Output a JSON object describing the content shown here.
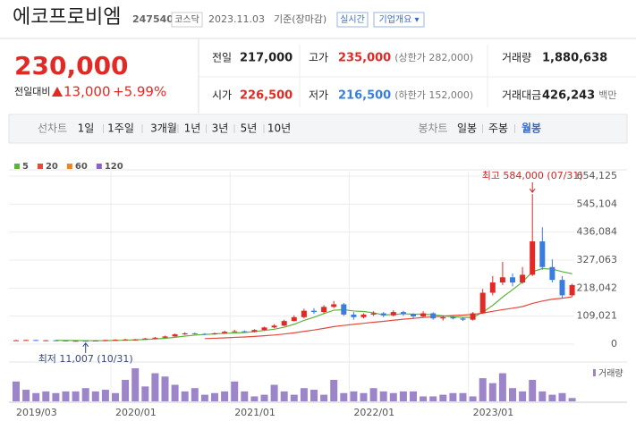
{
  "header": {
    "name": "에코프로비엠",
    "code": "247540",
    "market": "코스닥",
    "date": "2023.11.03",
    "basis": "기준(장마감)",
    "realtime": "실시간",
    "company_info": "기업개요 ▾"
  },
  "price": {
    "current": "230,000",
    "change_label": "전일대비",
    "change": "13,000",
    "change_pct": "+5.99%"
  },
  "quote": [
    {
      "label": "전일",
      "value": "217,000"
    },
    {
      "label": "고가",
      "value": "235,000",
      "note": "(상한가 282,000)"
    },
    {
      "label": "거래량",
      "value": "1,880,638"
    },
    {
      "label": "시가",
      "value": "226,500"
    },
    {
      "label": "저가",
      "value": "216,500",
      "note": "(하한가 152,000)"
    },
    {
      "label": "거래대금",
      "value": "426,243",
      "note": "백만"
    }
  ],
  "line_tabs": {
    "label": "선차트",
    "items": [
      "1일",
      "1주일",
      "3개월",
      "1년",
      "3년",
      "5년",
      "10년"
    ]
  },
  "candle_tabs": {
    "label": "봉차트",
    "items": [
      "일봉",
      "주봉",
      "월봉"
    ],
    "selected": 2
  },
  "chart_data": {
    "type": "candlestick",
    "categories": [
      "2019/03",
      null,
      null,
      null,
      null,
      null,
      null,
      null,
      null,
      null,
      "2020/01",
      null,
      null,
      null,
      null,
      null,
      null,
      null,
      null,
      null,
      null,
      null,
      "2021/01",
      null,
      null,
      null,
      null,
      null,
      null,
      null,
      null,
      null,
      null,
      null,
      "2022/01",
      null,
      null,
      null,
      null,
      null,
      null,
      null,
      null,
      null,
      null,
      null,
      "2023/01",
      null,
      null,
      null,
      null,
      null,
      null,
      null,
      null,
      null,
      null
    ],
    "open": [
      14000,
      15000,
      16000,
      14000,
      15000,
      14000,
      13000,
      13000,
      12000,
      14000,
      16000,
      17000,
      18000,
      18000,
      22000,
      25000,
      30000,
      38000,
      42000,
      40000,
      38000,
      42000,
      48000,
      50000,
      48000,
      55000,
      65000,
      72000,
      90000,
      105000,
      130000,
      125000,
      145000,
      155000,
      115000,
      105000,
      115000,
      120000,
      112000,
      125000,
      118000,
      108000,
      120000,
      100000,
      105000,
      100000,
      95000,
      120000,
      200000,
      240000,
      260000,
      240000,
      270000,
      400000,
      300000,
      250000,
      190000
    ],
    "high": [
      17000,
      17000,
      17000,
      16000,
      16000,
      15000,
      14000,
      14000,
      15000,
      17000,
      19000,
      21000,
      20000,
      24000,
      28000,
      33000,
      41000,
      46000,
      45000,
      43000,
      45000,
      52000,
      56000,
      53000,
      58000,
      68000,
      78000,
      95000,
      112000,
      138000,
      140000,
      152000,
      168000,
      160000,
      125000,
      120000,
      128000,
      125000,
      132000,
      130000,
      120000,
      128000,
      124000,
      112000,
      110000,
      104000,
      125000,
      215000,
      265000,
      320000,
      275000,
      300000,
      584000,
      455000,
      330000,
      265000,
      235000
    ],
    "low": [
      13000,
      14000,
      13000,
      13000,
      13000,
      12000,
      12000,
      11007,
      12000,
      13000,
      15000,
      15000,
      14000,
      17000,
      21000,
      24000,
      29000,
      36000,
      37000,
      35000,
      37000,
      41000,
      46000,
      44000,
      46000,
      53000,
      62000,
      70000,
      88000,
      100000,
      118000,
      120000,
      140000,
      110000,
      95000,
      100000,
      110000,
      105000,
      108000,
      110000,
      98000,
      105000,
      95000,
      92000,
      96000,
      90000,
      92000,
      118000,
      190000,
      230000,
      225000,
      235000,
      265000,
      290000,
      240000,
      180000,
      185000
    ],
    "close": [
      15000,
      16000,
      14000,
      15000,
      14000,
      13000,
      13000,
      12000,
      14000,
      16000,
      17000,
      18000,
      18000,
      22000,
      25000,
      30000,
      38000,
      42000,
      40000,
      38000,
      42000,
      48000,
      50000,
      48000,
      55000,
      65000,
      72000,
      90000,
      105000,
      130000,
      125000,
      145000,
      155000,
      115000,
      105000,
      115000,
      120000,
      112000,
      125000,
      118000,
      108000,
      120000,
      100000,
      105000,
      100000,
      95000,
      120000,
      200000,
      240000,
      260000,
      240000,
      270000,
      400000,
      300000,
      250000,
      190000,
      230000
    ],
    "up_color": "#e22926",
    "down_color": "#3a7de0",
    "series": [
      {
        "name": "5",
        "color": "#5cb53a",
        "values": [
          null,
          null,
          null,
          null,
          14800,
          14400,
          13800,
          13400,
          13200,
          13600,
          14400,
          15400,
          16600,
          18200,
          20000,
          22600,
          26600,
          31400,
          35000,
          37600,
          40000,
          42000,
          43600,
          45200,
          48600,
          53200,
          58000,
          66000,
          77400,
          92400,
          104400,
          119000,
          132000,
          134000,
          129000,
          127000,
          122000,
          113400,
          115400,
          118000,
          116600,
          116600,
          114200,
          110200,
          106600,
          104000,
          104000,
          124000,
          151000,
          183000,
          212000,
          242000,
          282000,
          294000,
          292000,
          282000,
          274000
        ]
      },
      {
        "name": "20",
        "color": "#e5493c",
        "values": [
          null,
          null,
          null,
          null,
          null,
          null,
          null,
          null,
          null,
          null,
          null,
          null,
          null,
          null,
          null,
          null,
          null,
          null,
          null,
          21500,
          22850,
          24450,
          26250,
          27900,
          29950,
          32550,
          35500,
          39400,
          43950,
          49650,
          55050,
          61400,
          68250,
          72900,
          76900,
          81150,
          85250,
          88750,
          93000,
          97000,
          100300,
          103900,
          106400,
          109250,
          111500,
          113000,
          115400,
          120900,
          127650,
          134150,
          139900,
          146150,
          158400,
          167650,
          174900,
          178650,
          184150
        ]
      },
      {
        "name": "60",
        "color": "#f0841f",
        "values": [
          null,
          null,
          null,
          null,
          null,
          null,
          null,
          null,
          null,
          null,
          null,
          null,
          null,
          null,
          null,
          null,
          null,
          null,
          null,
          null,
          null,
          null,
          null,
          null,
          null,
          null,
          null,
          null,
          null,
          null,
          null,
          null,
          null,
          null,
          null,
          null,
          null,
          null,
          null,
          null,
          null,
          null,
          null,
          null,
          null,
          null,
          null,
          null,
          null,
          null,
          null,
          null,
          null,
          null,
          null,
          null,
          null
        ]
      },
      {
        "name": "120",
        "color": "#8c63c4",
        "values": [
          null,
          null,
          null,
          null,
          null,
          null,
          null,
          null,
          null,
          null,
          null,
          null,
          null,
          null,
          null,
          null,
          null,
          null,
          null,
          null,
          null,
          null,
          null,
          null,
          null,
          null,
          null,
          null,
          null,
          null,
          null,
          null,
          null,
          null,
          null,
          null,
          null,
          null,
          null,
          null,
          null,
          null,
          null,
          null,
          null,
          null,
          null,
          null,
          null,
          null,
          null,
          null,
          null,
          null,
          null,
          null,
          null
        ]
      }
    ],
    "ylim": [
      0,
      654125
    ],
    "yticks": [
      0,
      {
        "value": 109021,
        "label": "109,021"
      },
      {
        "value": 218042,
        "label": "218,042"
      },
      {
        "value": 327063,
        "label": "327,063"
      },
      {
        "value": 436084,
        "label": "436,084"
      },
      {
        "value": 545104,
        "label": "545,104"
      },
      {
        "value": 654125,
        "label": "654,125"
      }
    ],
    "grid": true,
    "volume_label": "거래량",
    "volume_color": "#9c86c9",
    "volume_ylim": [
      0,
      20000000
    ],
    "volume": [
      12000000,
      7000000,
      5000000,
      6000000,
      5000000,
      6000000,
      6000000,
      8000000,
      6000000,
      7000000,
      5000000,
      13000000,
      20000000,
      9000000,
      17000000,
      15000000,
      10000000,
      6000000,
      8000000,
      4000000,
      5000000,
      6000000,
      12000000,
      6000000,
      3000000,
      4000000,
      10000000,
      6000000,
      4000000,
      8000000,
      7000000,
      4000000,
      13000000,
      5000000,
      6000000,
      5000000,
      8000000,
      6000000,
      5000000,
      6000000,
      6000000,
      3000000,
      3000000,
      4000000,
      5000000,
      5000000,
      3000000,
      14000000,
      11000000,
      17000000,
      8000000,
      6000000,
      13000000,
      6000000,
      4000000,
      5000000,
      2000000
    ],
    "annotations": {
      "high": "최고 584,000 (07/31)",
      "low": "최저 11,007 (10/31)"
    }
  }
}
